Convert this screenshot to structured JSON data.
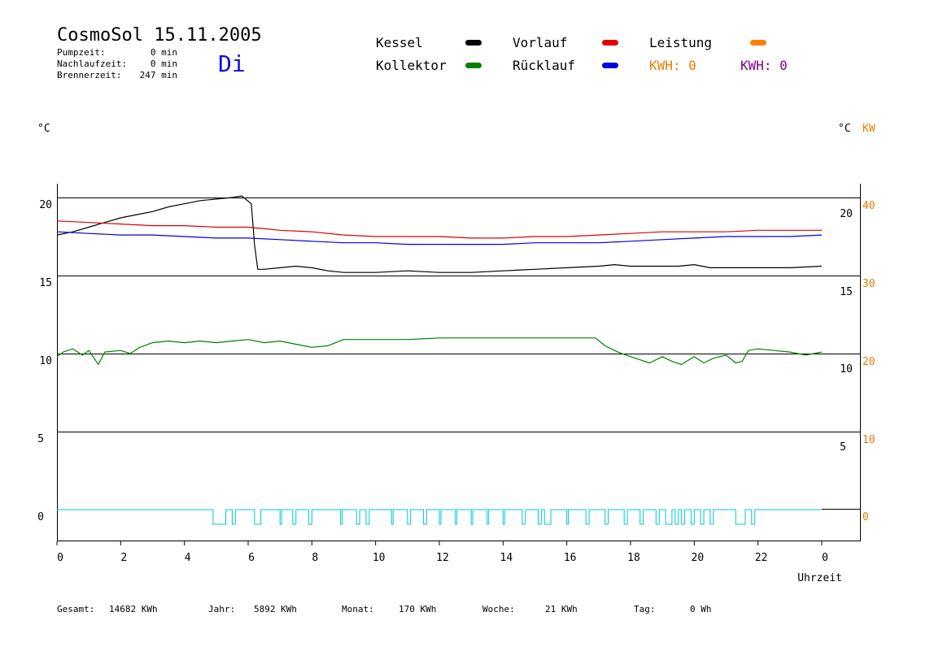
{
  "header": {
    "title": "CosmoSol 15.11.2005",
    "weekday": "Di",
    "stats": [
      {
        "label": "Pumpzeit:",
        "value": "0 min"
      },
      {
        "label": "Nachlaufzeit:",
        "value": "0 min"
      },
      {
        "label": "Brennerzeit:",
        "value": "247 min"
      }
    ]
  },
  "legend": {
    "items": [
      {
        "label": "Kessel",
        "color": "#000000"
      },
      {
        "label": "Vorlauf",
        "color": "#e00000"
      },
      {
        "label": "Leistung",
        "color": "#ff8000"
      },
      {
        "label": "Kollektor",
        "color": "#008000"
      },
      {
        "label": "Rücklauf",
        "color": "#0000e0"
      }
    ],
    "kwh_orange": {
      "label": "KWH: 0",
      "color": "#e08000"
    },
    "kwh_purple": {
      "label": "KWH: 0",
      "color": "#800080"
    }
  },
  "axes": {
    "left_unit": "°C",
    "right_unit": "°C",
    "right_unit2": "KW",
    "x_title": "Uhrzeit"
  },
  "footer": [
    {
      "label": "Gesamt:",
      "value": "14682 KWh"
    },
    {
      "label": "Jahr:",
      "value": "5892 KWh"
    },
    {
      "label": "Monat:",
      "value": "170 KWh"
    },
    {
      "label": "Woche:",
      "value": "21 KWh"
    },
    {
      "label": "Tag:",
      "value": "0 Wh"
    }
  ],
  "colors": {
    "kessel": "#000000",
    "vorlauf": "#e00000",
    "ruecklauf": "#0000e0",
    "kollektor": "#008000",
    "pump": "#00c8d0",
    "leistung_axis": "#e08000"
  },
  "chart_data": {
    "type": "line",
    "xlabel": "Uhrzeit",
    "x_ticks": [
      "0",
      "2",
      "4",
      "6",
      "8",
      "10",
      "12",
      "14",
      "16",
      "18",
      "20",
      "22",
      "0"
    ],
    "xlim": [
      0,
      24
    ],
    "left_axis": {
      "ticks": [
        "20",
        "15",
        "10",
        "5",
        "0"
      ],
      "ylim": [
        -1.6,
        22
      ]
    },
    "right_axis_inner": {
      "ticks": [
        "20",
        "15",
        "10",
        "5"
      ]
    },
    "right_axis_kw": {
      "ticks": [
        "40",
        "30",
        "20",
        "10",
        "0"
      ]
    },
    "series": [
      {
        "name": "Kessel",
        "axis": "left",
        "points": [
          [
            0,
            17.6
          ],
          [
            0.5,
            17.8
          ],
          [
            1,
            18.1
          ],
          [
            1.5,
            18.4
          ],
          [
            2,
            18.7
          ],
          [
            2.5,
            18.9
          ],
          [
            3,
            19.1
          ],
          [
            3.5,
            19.4
          ],
          [
            4,
            19.6
          ],
          [
            4.5,
            19.8
          ],
          [
            5,
            19.9
          ],
          [
            5.5,
            20.0
          ],
          [
            5.8,
            20.1
          ],
          [
            6.1,
            19.6
          ],
          [
            6.2,
            17.0
          ],
          [
            6.3,
            15.4
          ],
          [
            6.5,
            15.4
          ],
          [
            7,
            15.5
          ],
          [
            7.5,
            15.6
          ],
          [
            8,
            15.5
          ],
          [
            8.5,
            15.3
          ],
          [
            9,
            15.2
          ],
          [
            10,
            15.2
          ],
          [
            11,
            15.3
          ],
          [
            12,
            15.2
          ],
          [
            13,
            15.2
          ],
          [
            14,
            15.3
          ],
          [
            15,
            15.4
          ],
          [
            16,
            15.5
          ],
          [
            17,
            15.6
          ],
          [
            17.5,
            15.7
          ],
          [
            18,
            15.6
          ],
          [
            19,
            15.6
          ],
          [
            19.5,
            15.6
          ],
          [
            20,
            15.7
          ],
          [
            20.5,
            15.5
          ],
          [
            21,
            15.5
          ],
          [
            22,
            15.5
          ],
          [
            23,
            15.5
          ],
          [
            24,
            15.6
          ]
        ]
      },
      {
        "name": "Vorlauf",
        "axis": "left",
        "points": [
          [
            0,
            18.5
          ],
          [
            1,
            18.4
          ],
          [
            2,
            18.3
          ],
          [
            3,
            18.2
          ],
          [
            4,
            18.2
          ],
          [
            5,
            18.1
          ],
          [
            6,
            18.1
          ],
          [
            6.5,
            18.0
          ],
          [
            7,
            17.9
          ],
          [
            8,
            17.8
          ],
          [
            9,
            17.6
          ],
          [
            10,
            17.5
          ],
          [
            11,
            17.5
          ],
          [
            12,
            17.5
          ],
          [
            13,
            17.4
          ],
          [
            14,
            17.4
          ],
          [
            15,
            17.5
          ],
          [
            16,
            17.5
          ],
          [
            17,
            17.6
          ],
          [
            18,
            17.7
          ],
          [
            19,
            17.8
          ],
          [
            20,
            17.8
          ],
          [
            21,
            17.8
          ],
          [
            22,
            17.9
          ],
          [
            23,
            17.9
          ],
          [
            24,
            17.9
          ]
        ]
      },
      {
        "name": "Rücklauf",
        "axis": "left",
        "points": [
          [
            0,
            17.8
          ],
          [
            1,
            17.7
          ],
          [
            2,
            17.6
          ],
          [
            3,
            17.6
          ],
          [
            4,
            17.5
          ],
          [
            5,
            17.4
          ],
          [
            6,
            17.4
          ],
          [
            7,
            17.3
          ],
          [
            8,
            17.2
          ],
          [
            9,
            17.1
          ],
          [
            10,
            17.1
          ],
          [
            11,
            17.0
          ],
          [
            12,
            17.0
          ],
          [
            13,
            17.0
          ],
          [
            14,
            17.0
          ],
          [
            15,
            17.1
          ],
          [
            16,
            17.1
          ],
          [
            17,
            17.1
          ],
          [
            18,
            17.2
          ],
          [
            19,
            17.3
          ],
          [
            20,
            17.4
          ],
          [
            21,
            17.5
          ],
          [
            22,
            17.5
          ],
          [
            23,
            17.5
          ],
          [
            24,
            17.6
          ]
        ]
      },
      {
        "name": "Kollektor",
        "axis": "left",
        "points": [
          [
            0,
            9.8
          ],
          [
            0.2,
            10.1
          ],
          [
            0.5,
            10.3
          ],
          [
            0.8,
            9.9
          ],
          [
            1,
            10.2
          ],
          [
            1.3,
            9.3
          ],
          [
            1.5,
            10.1
          ],
          [
            2,
            10.2
          ],
          [
            2.3,
            10.0
          ],
          [
            2.6,
            10.4
          ],
          [
            3,
            10.7
          ],
          [
            3.5,
            10.8
          ],
          [
            4,
            10.7
          ],
          [
            4.5,
            10.8
          ],
          [
            5,
            10.7
          ],
          [
            5.5,
            10.8
          ],
          [
            6,
            10.9
          ],
          [
            6.5,
            10.7
          ],
          [
            7,
            10.8
          ],
          [
            7.5,
            10.6
          ],
          [
            8,
            10.4
          ],
          [
            8.5,
            10.5
          ],
          [
            9,
            10.9
          ],
          [
            10,
            10.9
          ],
          [
            11,
            10.9
          ],
          [
            12,
            11.0
          ],
          [
            13,
            11.0
          ],
          [
            14,
            11.0
          ],
          [
            15,
            11.0
          ],
          [
            16,
            11.0
          ],
          [
            16.9,
            11.0
          ],
          [
            17.2,
            10.5
          ],
          [
            17.6,
            10.1
          ],
          [
            18,
            9.8
          ],
          [
            18.3,
            9.6
          ],
          [
            18.6,
            9.4
          ],
          [
            19,
            9.8
          ],
          [
            19.3,
            9.5
          ],
          [
            19.6,
            9.3
          ],
          [
            20,
            9.8
          ],
          [
            20.3,
            9.4
          ],
          [
            20.6,
            9.7
          ],
          [
            21,
            9.9
          ],
          [
            21.3,
            9.4
          ],
          [
            21.5,
            9.5
          ],
          [
            21.7,
            10.2
          ],
          [
            22,
            10.3
          ],
          [
            22.5,
            10.2
          ],
          [
            23,
            10.1
          ],
          [
            23.5,
            9.9
          ],
          [
            24,
            10.1
          ]
        ]
      }
    ],
    "pump_pulses": [
      [
        4.9,
        5.3
      ],
      [
        5.5,
        5.6
      ],
      [
        6.2,
        6.4
      ],
      [
        7.0,
        7.05
      ],
      [
        7.4,
        7.5
      ],
      [
        7.9,
        8.0
      ],
      [
        8.9,
        8.95
      ],
      [
        9.4,
        9.5
      ],
      [
        9.7,
        9.8
      ],
      [
        10.5,
        10.55
      ],
      [
        11.0,
        11.1
      ],
      [
        11.5,
        11.6
      ],
      [
        12.0,
        12.05
      ],
      [
        12.5,
        12.55
      ],
      [
        13.0,
        13.05
      ],
      [
        13.5,
        13.55
      ],
      [
        14.0,
        14.05
      ],
      [
        14.6,
        14.7
      ],
      [
        15.1,
        15.2
      ],
      [
        15.3,
        15.5
      ],
      [
        16.0,
        16.05
      ],
      [
        16.6,
        16.7
      ],
      [
        17.2,
        17.3
      ],
      [
        17.8,
        17.9
      ],
      [
        18.3,
        18.4
      ],
      [
        18.8,
        18.9
      ],
      [
        19.1,
        19.3
      ],
      [
        19.4,
        19.5
      ],
      [
        19.6,
        19.7
      ],
      [
        19.9,
        20.0
      ],
      [
        20.2,
        20.3
      ],
      [
        20.5,
        20.6
      ],
      [
        21.3,
        21.6
      ],
      [
        21.8,
        21.9
      ]
    ]
  }
}
